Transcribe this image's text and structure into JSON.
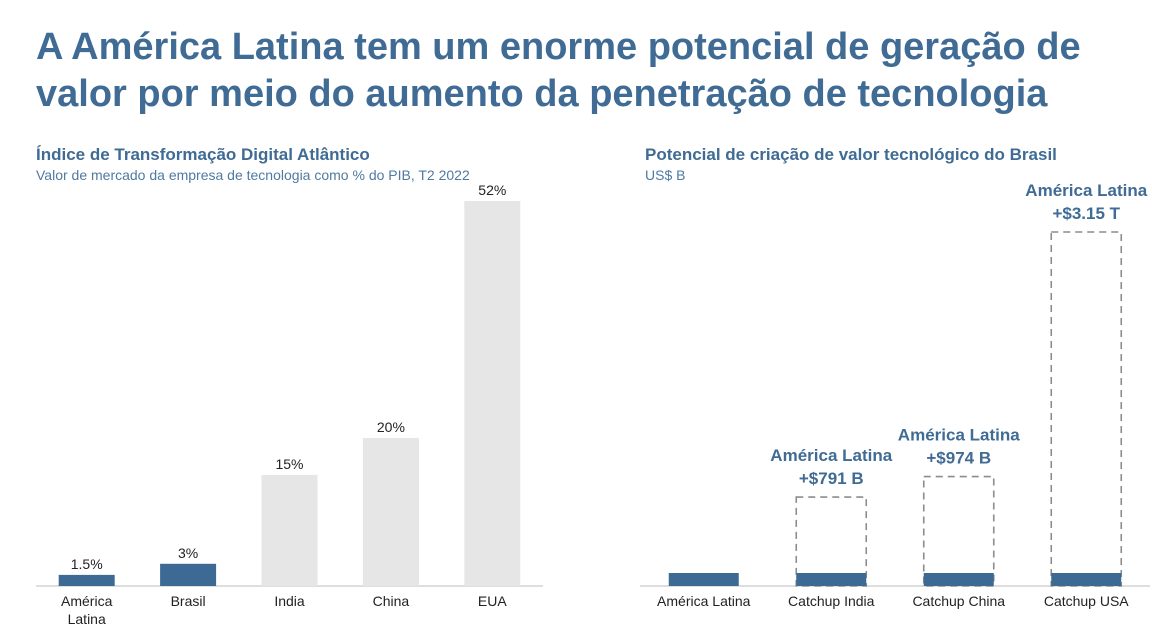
{
  "title": "A América Latina tem um enorme potencial de geração de valor por meio do aumento da penetração de tecnologia",
  "colors": {
    "accent": "#3f6b94",
    "bar_highlight": "#3d6a94",
    "bar_muted": "#e6e6e6",
    "dashed": "#8c8c8c"
  },
  "chart_data": [
    {
      "type": "bar",
      "title": "Índice de Transformação Digital Atlântico",
      "subtitle": "Valor de mercado da empresa de tecnologia como % do PIB, T2 2022",
      "categories": [
        [
          "América",
          "Latina"
        ],
        [
          "Brasil"
        ],
        [
          "India"
        ],
        [
          "China"
        ],
        [
          "EUA"
        ]
      ],
      "values": [
        1.5,
        3,
        15,
        20,
        52
      ],
      "data_labels": [
        "1.5%",
        "3%",
        "15%",
        "20%",
        "52%"
      ],
      "highlight": [
        true,
        true,
        false,
        false,
        false
      ],
      "ylim": [
        0,
        52
      ],
      "grid": false
    },
    {
      "type": "bar",
      "title": "Potencial de criação de valor tecnológico do Brasil",
      "subtitle": "US$ B",
      "categories": [
        "América Latina",
        "Catchup India",
        "Catchup China",
        "Catchup USA"
      ],
      "values": [
        80,
        80,
        80,
        80
      ],
      "potential": [
        null,
        791,
        974,
        3150
      ],
      "annotations": [
        null,
        [
          "América Latina",
          "+$791 B"
        ],
        [
          "América Latina",
          "+$974 B"
        ],
        [
          "América Latina",
          "+$3.15 T"
        ]
      ],
      "ylim": [
        0,
        3150
      ],
      "grid": false
    }
  ]
}
